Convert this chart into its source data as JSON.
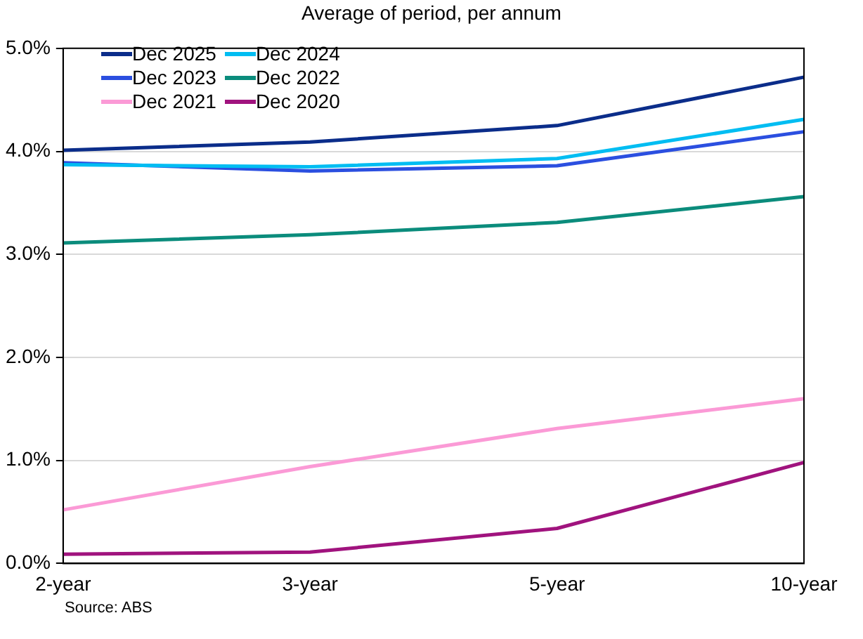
{
  "chart_data": {
    "type": "line",
    "title": "Average of period, per annum",
    "annotations": [
      "Source: ABS"
    ],
    "categories": [
      "2-year",
      "3-year",
      "5-year",
      "10-year"
    ],
    "series": [
      {
        "name": "Dec 2025",
        "color": "#0b2d8a",
        "values": [
          4.01,
          4.09,
          4.25,
          4.72
        ]
      },
      {
        "name": "Dec 2024",
        "color": "#00bdf2",
        "values": [
          3.87,
          3.85,
          3.93,
          4.31
        ]
      },
      {
        "name": "Dec 2023",
        "color": "#2b4fe0",
        "values": [
          3.89,
          3.81,
          3.86,
          4.19
        ]
      },
      {
        "name": "Dec 2022",
        "color": "#0b8c7c",
        "values": [
          3.11,
          3.19,
          3.31,
          3.56
        ]
      },
      {
        "name": "Dec 2021",
        "color": "#fb9ad6",
        "values": [
          0.52,
          0.94,
          1.31,
          1.6
        ]
      },
      {
        "name": "Dec 2020",
        "color": "#a0137e",
        "values": [
          0.09,
          0.11,
          0.34,
          0.98
        ]
      }
    ],
    "ylim": [
      0,
      5
    ],
    "yticks": [
      {
        "value": 0,
        "label": "0.0%"
      },
      {
        "value": 1,
        "label": "1.0%"
      },
      {
        "value": 2,
        "label": "2.0%"
      },
      {
        "value": 3,
        "label": "3.0%"
      },
      {
        "value": 4,
        "label": "4.0%"
      },
      {
        "value": 5,
        "label": "5.0%"
      }
    ],
    "grid": "y",
    "legend": "top left",
    "marker": "none",
    "line_style": "solid"
  }
}
